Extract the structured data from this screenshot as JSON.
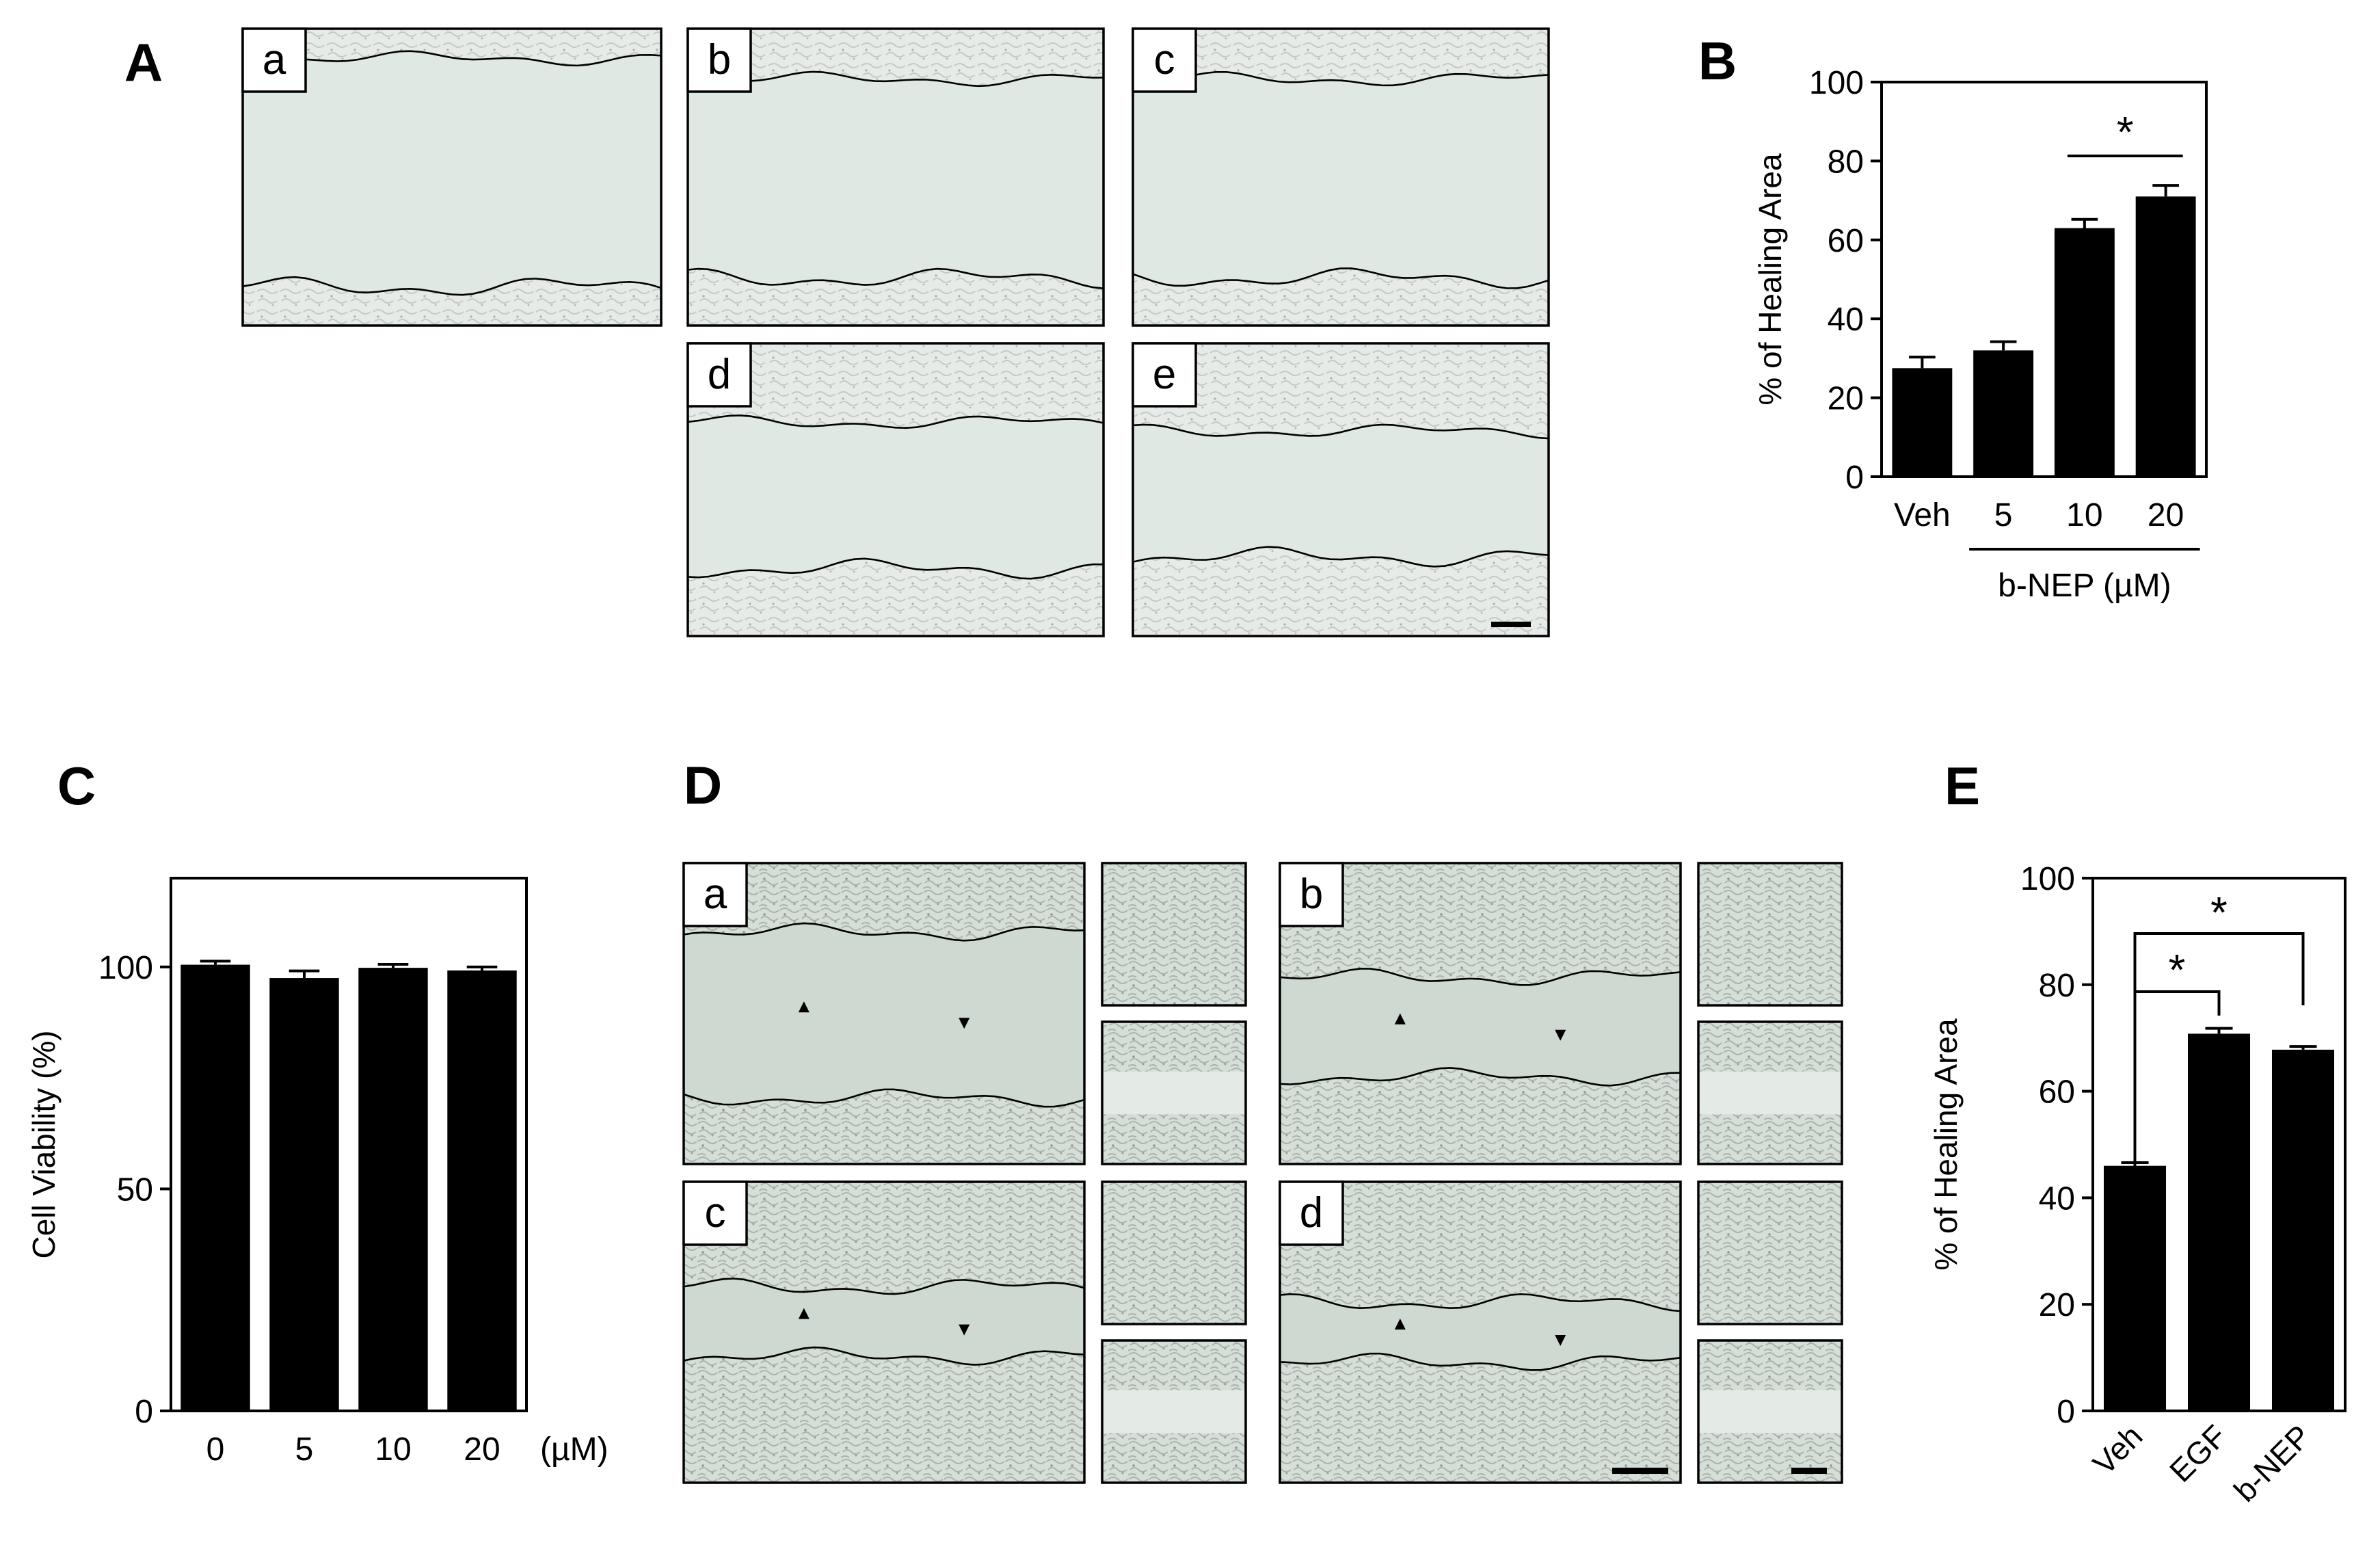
{
  "panels": {
    "A": {
      "label": "A",
      "subpanels": [
        "a",
        "b",
        "c",
        "d",
        "e"
      ],
      "has_scale_bar": true
    },
    "D": {
      "label": "D",
      "subpanels": [
        "a",
        "b",
        "c",
        "d"
      ],
      "has_arrowheads": true,
      "has_scale_bars": true
    }
  },
  "chart_data": [
    {
      "panel": "B",
      "type": "bar",
      "categories": [
        "Veh",
        "5",
        "10",
        "20"
      ],
      "values": [
        27.5,
        32,
        63,
        71
      ],
      "errors": [
        2.8,
        2.2,
        2.2,
        2.8
      ],
      "ylabel": "% of Healing Area",
      "ylim": [
        0,
        100
      ],
      "yticks": [
        0,
        20,
        40,
        60,
        80,
        100
      ],
      "group_label": "b-NEP (µM)",
      "group_members": [
        "5",
        "10",
        "20"
      ],
      "significance": [
        {
          "from": "10",
          "to": "20",
          "label": "*"
        }
      ],
      "bar_color": "#000000",
      "grid": false
    },
    {
      "panel": "C",
      "type": "bar",
      "categories": [
        "0",
        "5",
        "10",
        "20"
      ],
      "values": [
        100.5,
        97.5,
        99.8,
        99.2
      ],
      "errors": [
        0.8,
        1.6,
        0.8,
        0.8
      ],
      "ylabel": "Cell Viability (%)",
      "xunit": "(µM)",
      "ylim": [
        0,
        120
      ],
      "yticks": [
        0,
        50,
        100
      ],
      "bar_color": "#000000",
      "grid": false
    },
    {
      "panel": "E",
      "type": "bar",
      "categories": [
        "Veh",
        "EGF",
        "b-NEP"
      ],
      "values": [
        46,
        70.8,
        67.8
      ],
      "errors": [
        0.6,
        1.0,
        0.6
      ],
      "ylabel": "% of Healing Area",
      "ylim": [
        0,
        100
      ],
      "yticks": [
        0,
        20,
        40,
        60,
        80,
        100
      ],
      "tick_rotation": "45 degrees",
      "significance": [
        {
          "from": "Veh",
          "to": "EGF",
          "label": "*"
        },
        {
          "from": "Veh",
          "to": "b-NEP",
          "label": "*"
        }
      ],
      "bar_color": "#000000",
      "grid": false
    }
  ],
  "colors": {
    "well_background": "#dfe7e2",
    "cell_texture": "#c9cfca",
    "bar": "#000000",
    "stroke": "#000000"
  }
}
